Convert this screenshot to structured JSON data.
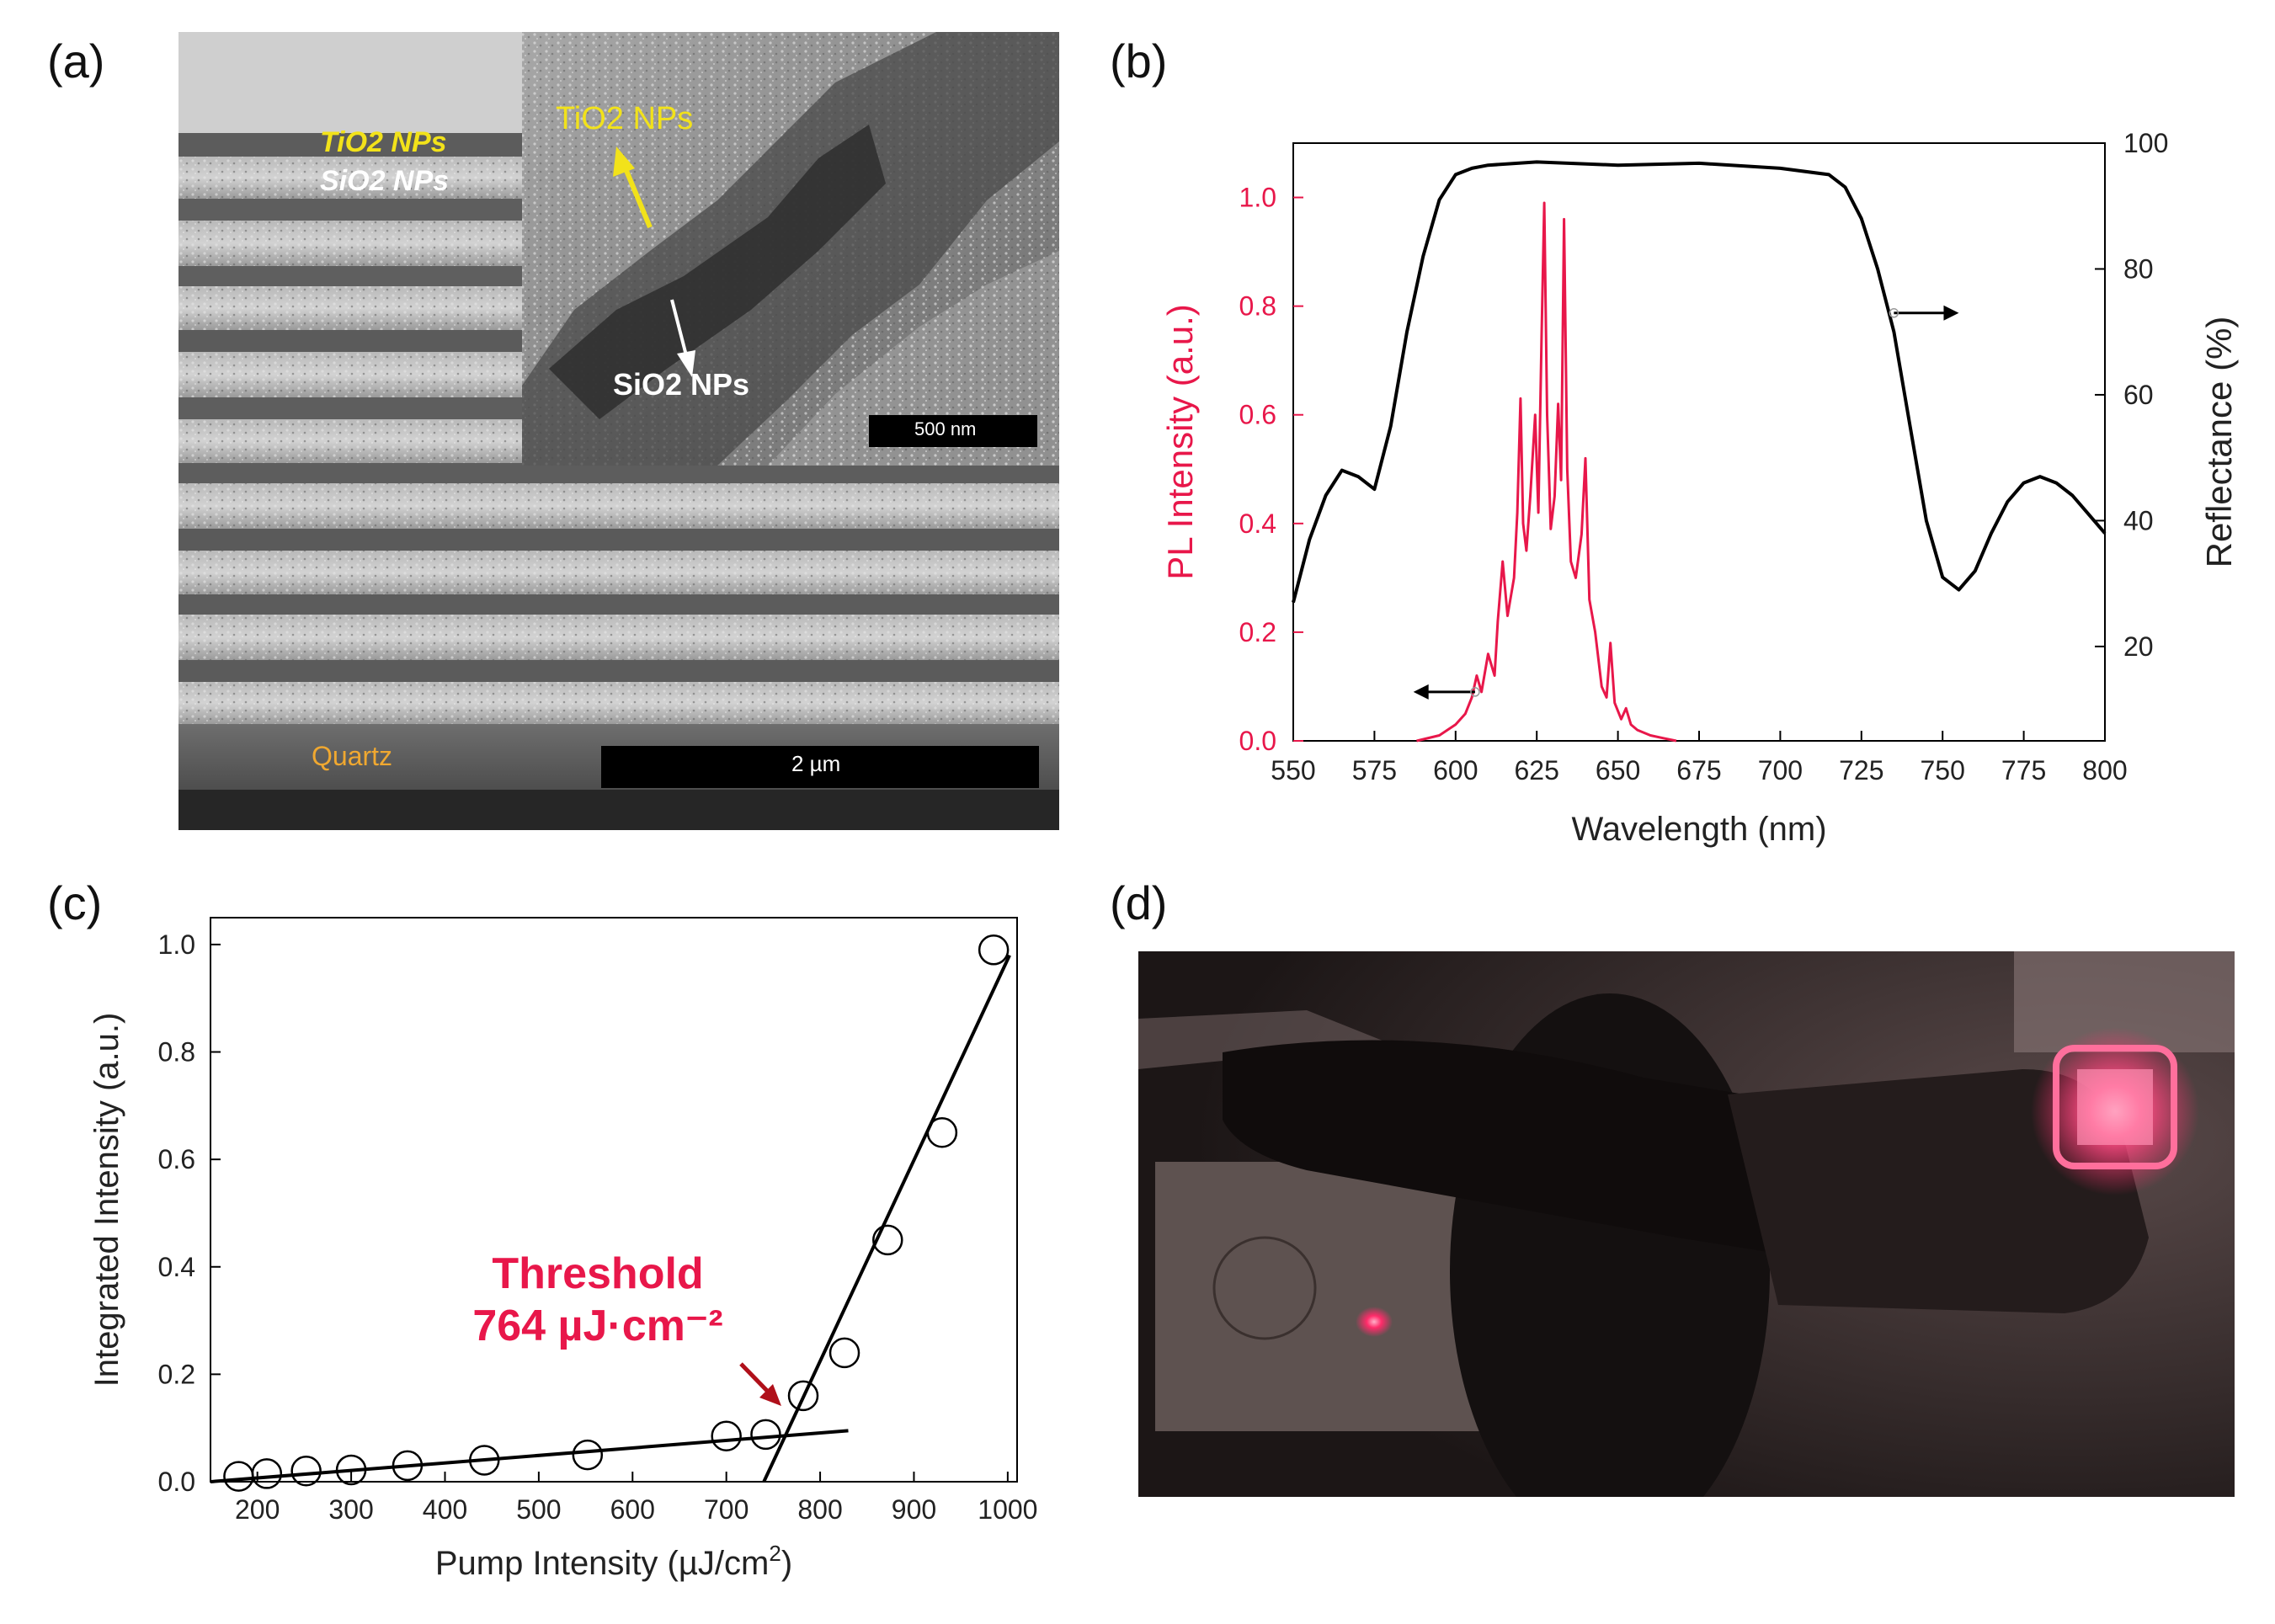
{
  "panels": {
    "a": {
      "label": "(a)",
      "labels": {
        "tio2_left": "TiO2 NPs",
        "sio2_left": "SiO2 NPs",
        "tio2_inset": "TiO2 NPs",
        "sio2_inset": "SiO2 NPs",
        "quartz": "Quartz",
        "scale_inset": "500 nm",
        "scale_main": "2 µm"
      }
    },
    "b": {
      "label": "(b)"
    },
    "c": {
      "label": "(c)"
    },
    "d": {
      "label": "(d)"
    }
  },
  "chart_data": [
    {
      "panel": "b",
      "type": "line",
      "xlabel": "Wavelength (nm)",
      "ylabel": "PL Intensity (a.u.)",
      "y2label": "Reflectance (%)",
      "xlim": [
        550,
        800
      ],
      "ylim": [
        0,
        1.1
      ],
      "y2lim": [
        5,
        100
      ],
      "xticks": [
        550,
        575,
        600,
        625,
        650,
        675,
        700,
        725,
        750,
        775,
        800
      ],
      "yticks": [
        0.0,
        0.2,
        0.4,
        0.6,
        0.8,
        1.0
      ],
      "y2ticks": [
        20,
        40,
        60,
        80,
        100
      ],
      "series": [
        {
          "axis": "left",
          "color": "#e8174a",
          "x": [
            588,
            595,
            600,
            603,
            605,
            606.5,
            608,
            610,
            612,
            613,
            614.5,
            616,
            618,
            619,
            620,
            620.8,
            621.8,
            623,
            624.5,
            625.5,
            626.5,
            627.3,
            628.2,
            629.3,
            630.5,
            631.6,
            632.5,
            633.4,
            634.4,
            635.5,
            637,
            638.8,
            640,
            641.2,
            643,
            645,
            646.5,
            647.7,
            649,
            651,
            652.5,
            654,
            656,
            660,
            664,
            668
          ],
          "y": [
            0.0,
            0.01,
            0.03,
            0.05,
            0.08,
            0.12,
            0.09,
            0.16,
            0.12,
            0.22,
            0.33,
            0.23,
            0.3,
            0.42,
            0.63,
            0.4,
            0.35,
            0.45,
            0.6,
            0.42,
            0.75,
            0.99,
            0.6,
            0.39,
            0.45,
            0.62,
            0.48,
            0.96,
            0.5,
            0.33,
            0.3,
            0.38,
            0.52,
            0.26,
            0.2,
            0.1,
            0.08,
            0.18,
            0.07,
            0.04,
            0.06,
            0.03,
            0.02,
            0.01,
            0.005,
            0.0
          ]
        },
        {
          "axis": "right",
          "color": "#000000",
          "x": [
            550,
            555,
            560,
            565,
            570,
            575,
            580,
            585,
            590,
            595,
            600,
            605,
            610,
            625,
            650,
            675,
            700,
            715,
            720,
            725,
            730,
            735,
            740,
            745,
            750,
            755,
            760,
            765,
            770,
            775,
            780,
            785,
            790,
            795,
            800
          ],
          "y": [
            27,
            37,
            44,
            48,
            47,
            45,
            55,
            70,
            82,
            91,
            95,
            96,
            96.5,
            97,
            96.5,
            96.8,
            96,
            95,
            93,
            88,
            80,
            70,
            55,
            40,
            31,
            29,
            32,
            38,
            43,
            46,
            47,
            46,
            44,
            41,
            38
          ]
        }
      ],
      "annotations": [
        "arrow-left",
        "arrow-right"
      ]
    },
    {
      "panel": "c",
      "type": "scatter",
      "xlabel": "Pump Intensity (µJ/cm2)",
      "ylabel": "Integrated Intensity (a.u.)",
      "xlim": [
        150,
        1010
      ],
      "ylim": [
        0,
        1.05
      ],
      "xticks": [
        200,
        300,
        400,
        500,
        600,
        700,
        800,
        900,
        1000
      ],
      "yticks": [
        0.0,
        0.2,
        0.4,
        0.6,
        0.8,
        1.0
      ],
      "series": [
        {
          "name": "data",
          "x": [
            180,
            210,
            252,
            300,
            360,
            442,
            552,
            700,
            742,
            782,
            826,
            872,
            930,
            985
          ],
          "y": [
            0.01,
            0.015,
            0.02,
            0.022,
            0.03,
            0.04,
            0.05,
            0.085,
            0.088,
            0.16,
            0.24,
            0.45,
            0.65,
            0.99
          ]
        }
      ],
      "fit_lines": [
        {
          "x": [
            150,
            830
          ],
          "y": [
            0.0,
            0.095
          ]
        },
        {
          "x": [
            740,
            1002
          ],
          "y": [
            0.0,
            0.98
          ]
        }
      ],
      "annotation": {
        "line1": "Threshold",
        "line2": "764 µJ·cm⁻²",
        "color": "#e8174a"
      }
    }
  ]
}
